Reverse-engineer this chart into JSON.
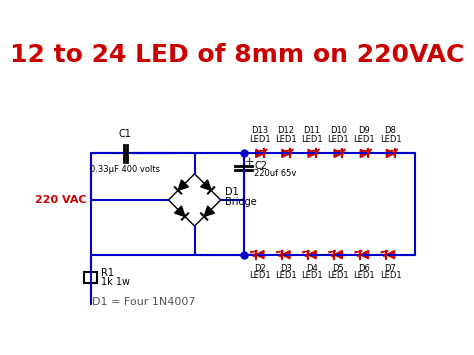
{
  "title": "12 to 24 LED of 8mm on 220VAC",
  "title_color": "#cc0000",
  "title_fontsize": 18,
  "bg_color": "#ffffff",
  "wire_color": "#0000cc",
  "component_color": "#000000",
  "led_color": "#cc0000",
  "label_color": "#000000",
  "vac_label_color": "#cc0000",
  "footnote": "D1 = Four 1N4007",
  "top_led_labels": [
    "D13\nLED1",
    "D12\nLED1",
    "D11\nLED1",
    "D10\nLED1",
    "D9\nLED1",
    "D8\nLED1"
  ],
  "bot_led_labels": [
    "D2\nLED1",
    "D3\nLED1",
    "D4\nLED1",
    "D5\nLED1",
    "D6\nLED1",
    "D7\nLED1"
  ]
}
